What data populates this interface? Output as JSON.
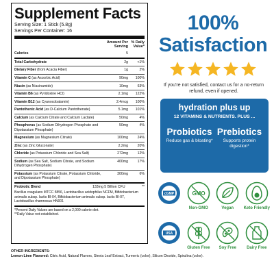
{
  "facts": {
    "title": "Supplement Facts",
    "serving_size": "Serving Size: 1 Stick (5.8g)",
    "servings_per_container": "Servings Per Container: 16",
    "col_amount": "Amount Per Serving",
    "col_dv": "% Daily Value*",
    "rows": [
      {
        "name": "Calories",
        "detail": "",
        "amount": "5",
        "dv": ""
      },
      {
        "name": "Total Carbohydrate",
        "detail": "",
        "amount": "2g",
        "dv": "<1%"
      },
      {
        "name": "Dietary Fiber",
        "detail": "(from Acacia Fiber)",
        "amount": "1g",
        "dv": "2%"
      },
      {
        "name": "Vitamin C",
        "detail": "(as Ascorbic Acid)",
        "amount": "90mg",
        "dv": "100%"
      },
      {
        "name": "Niacin",
        "detail": "(as Niacinamide)",
        "amount": "10mg",
        "dv": "63%"
      },
      {
        "name": "Vitamin B6",
        "detail": "(as Pyridoxine HCl)",
        "amount": "2.1mg",
        "dv": "122%"
      },
      {
        "name": "Vitamin B12",
        "detail": "(as Cyanocobalamin)",
        "amount": "2.4mcg",
        "dv": "100%"
      },
      {
        "name": "Pantothenic Acid",
        "detail": "(as D-Calcium Pantothenate)",
        "amount": "5.1mg",
        "dv": "101%"
      },
      {
        "name": "Calcium",
        "detail": "(as Calcium Citrate and Calcium Lactate)",
        "amount": "50mg",
        "dv": "4%"
      },
      {
        "name": "Phosphorus",
        "detail": "(as Sodium Dihydrogen Phosphate and Dipotassium Phosphate)",
        "amount": "50mg",
        "dv": "4%"
      },
      {
        "name": "Magnesium",
        "detail": "(as Magnesium Citrate)",
        "amount": "100mg",
        "dv": "24%"
      },
      {
        "name": "Zinc",
        "detail": "(as Zinc Gluconate)",
        "amount": "2.2mg",
        "dv": "20%"
      },
      {
        "name": "Chloride",
        "detail": "(as Potassium Chloride and Sea Salt)",
        "amount": "272mg",
        "dv": "12%"
      },
      {
        "name": "Sodium",
        "detail": "(as Sea Salt, Sodium Citrate, and Sodium Dihydrogen Phosphate)",
        "amount": "400mg",
        "dv": "17%"
      },
      {
        "name": "Potassium",
        "detail": "(as Potassium Citrate, Potassium Chloride, and Dipotassium Phosphate)",
        "amount": "300mg",
        "dv": "6%"
      }
    ],
    "probiotic": {
      "name": "Probiotic Blend",
      "amount": "133mg  5 Billion CFU",
      "dv": "**"
    },
    "strains": "Bacillus coagulans MTCC 5856, Lactobacillus acidophilus NCFM, Bifidobacterium animalis subsp. lactis BI-04, Bifidobacterium animalis subsp. lactis BI-07, Lactobacillus rhamnosus HN001",
    "footnote_1": "*Percent Daily Values are based on a 2,000 calorie diet.",
    "footnote_2": "**Daily Value not established."
  },
  "ingredients": {
    "heading": "OTHER INGREDIENTS:",
    "flavor_label": "Lemon Lime Flavored:",
    "text": "Citric Acid, Natural Flavors, Stevia Leaf Extract, Turmeric (color), Silicon Dioxide, Spirulina (color)."
  },
  "promo": {
    "headline_1": "100%",
    "headline_2": "Satisfaction",
    "star_count": 5,
    "guarantee": "If you're not satisfied, contact us for a no-return refund, even if opened.",
    "hydration_title": "hydration plus up",
    "hydration_sub": "12 VITAMINS & NUTRIENTS. PLUS ...",
    "probiotics_title": "Probiotics",
    "probiotics_desc": "Reduce gas & bloating*",
    "prebiotics_title": "Prebiotics",
    "prebiotics_desc": "Supports protein digestion*"
  },
  "badges": [
    {
      "label": "",
      "icon": "cgmp-seal-icon",
      "inner": "cGMP"
    },
    {
      "label": "Non-GMO",
      "icon": "non-gmo-icon",
      "inner": "GMO"
    },
    {
      "label": "Vegan",
      "icon": "vegan-leaf-icon",
      "inner": ""
    },
    {
      "label": "Keto Friendly",
      "icon": "keto-avocado-icon",
      "inner": ""
    },
    {
      "label": "",
      "icon": "made-in-usa-seal-icon",
      "inner": "USA"
    },
    {
      "label": "Gluten Free",
      "icon": "gluten-free-icon",
      "inner": ""
    },
    {
      "label": "Soy Free",
      "icon": "soy-free-icon",
      "inner": ""
    },
    {
      "label": "Dairy Free",
      "icon": "dairy-free-icon",
      "inner": ""
    }
  ],
  "colors": {
    "brand_blue": "#1d6aa8",
    "star_gold": "#f5b623",
    "badge_green": "#2f8f3e"
  }
}
